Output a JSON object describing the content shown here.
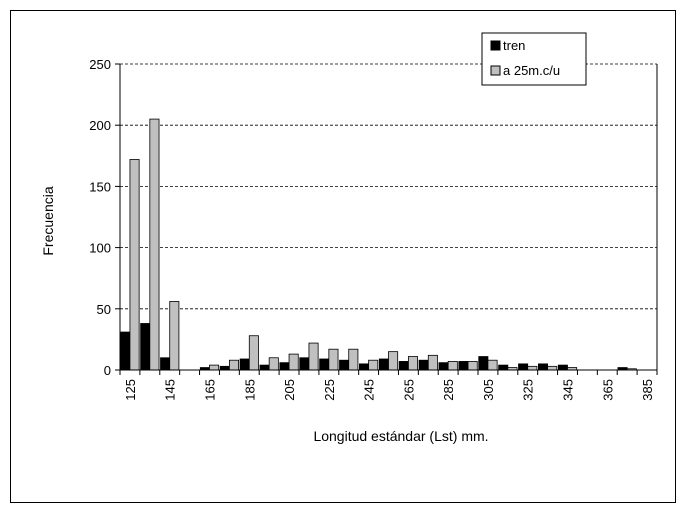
{
  "chart_data": {
    "type": "bar",
    "title": "",
    "xlabel": "Longitud estándar (Lst) mm.",
    "ylabel": "Frecuencia",
    "ylim": [
      0,
      250
    ],
    "yticks": [
      0,
      50,
      100,
      150,
      200,
      250
    ],
    "grid": "horizontal-dashed",
    "legend_position": "top-right",
    "categories": [
      125,
      135,
      145,
      155,
      165,
      175,
      185,
      195,
      205,
      215,
      225,
      235,
      245,
      255,
      265,
      275,
      285,
      295,
      305,
      315,
      325,
      335,
      345,
      355,
      365,
      375,
      385
    ],
    "tick_labels": [
      "125",
      "",
      "145",
      "",
      "165",
      "",
      "185",
      "",
      "205",
      "",
      "225",
      "",
      "245",
      "",
      "265",
      "",
      "285",
      "",
      "305",
      "",
      "325",
      "",
      "345",
      "",
      "365",
      "",
      "385"
    ],
    "series": [
      {
        "name": "tren",
        "color": "#000000",
        "values": [
          31,
          38,
          10,
          0,
          2,
          3,
          9,
          4,
          6,
          10,
          9,
          8,
          5,
          9,
          7,
          8,
          6,
          7,
          11,
          4,
          5,
          5,
          4,
          0,
          0,
          2,
          0
        ]
      },
      {
        "name": "a 25m.c/u",
        "color": "#c0c0c0",
        "values": [
          172,
          205,
          56,
          0,
          4,
          8,
          28,
          10,
          13,
          22,
          17,
          17,
          8,
          15,
          11,
          12,
          7,
          7,
          8,
          2,
          3,
          3,
          2,
          0,
          0,
          1,
          0
        ]
      }
    ]
  }
}
